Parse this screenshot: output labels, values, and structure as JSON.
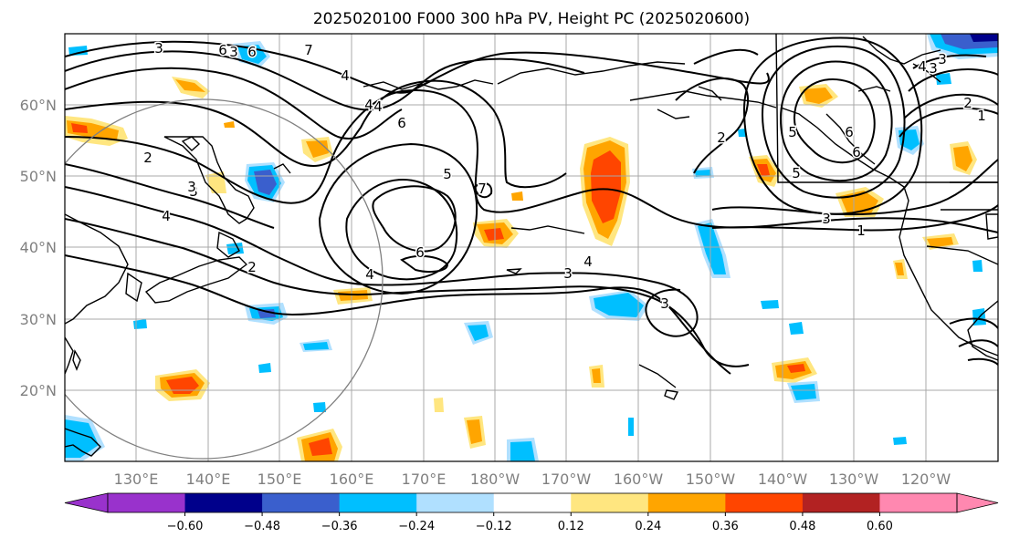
{
  "title": "2025020100 F000 300 hPa PV, Height PC (2025020600)",
  "map": {
    "lat_labels": [
      "60°N",
      "50°N",
      "40°N",
      "30°N",
      "20°N"
    ],
    "lon_labels": [
      "130°E",
      "140°E",
      "150°E",
      "160°E",
      "170°E",
      "180°W",
      "170°W",
      "160°W",
      "150°W",
      "140°W",
      "130°W",
      "120°W"
    ],
    "contour_labels": [
      "3",
      "3",
      "6",
      "7",
      "4",
      "6",
      "5",
      "5",
      "6",
      "7",
      "2",
      "3",
      "3",
      "4",
      "2",
      "4",
      "6",
      "3",
      "3",
      "3",
      "4",
      "1",
      "2",
      "5",
      "6",
      "4",
      "3",
      "2",
      "1",
      "3",
      "4",
      "6",
      "4"
    ]
  },
  "colorbar": {
    "ticks": [
      "−0.60",
      "−0.48",
      "−0.36",
      "−0.24",
      "−0.12",
      "0.12",
      "0.24",
      "0.36",
      "0.48",
      "0.60"
    ],
    "colors": [
      "#9932cc",
      "#00008b",
      "#3a5fcd",
      "#00bfff",
      "#b0e0ff",
      "#ffffff",
      "#ffe680",
      "#ffa500",
      "#ff4500",
      "#b22222",
      "#ff88b0"
    ]
  },
  "chart_data": {
    "type": "heatmap",
    "title": "2025020100 F000 300 hPa PV, Height PC (2025020600)",
    "x_ticks": [
      "130°E",
      "140°E",
      "150°E",
      "160°E",
      "170°E",
      "180°W",
      "170°W",
      "160°W",
      "150°W",
      "140°W",
      "130°W",
      "120°W"
    ],
    "y_ticks": [
      "60°N",
      "50°N",
      "40°N",
      "30°N",
      "20°N"
    ],
    "colorbar_levels": [
      -0.6,
      -0.48,
      -0.36,
      -0.24,
      -0.12,
      0.12,
      0.24,
      0.36,
      0.48,
      0.6
    ]
  }
}
